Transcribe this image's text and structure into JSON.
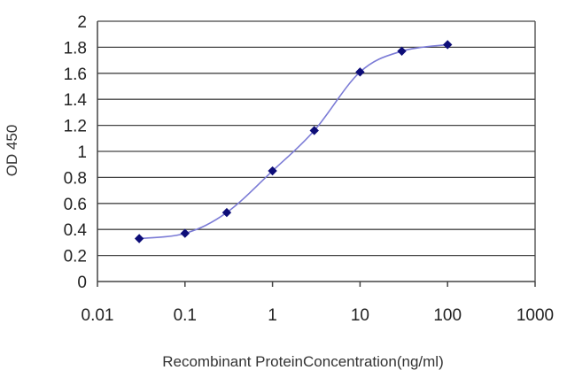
{
  "chart_data": {
    "type": "line",
    "title": "",
    "xlabel": "Recombinant ProteinConcentration(ng/ml)",
    "ylabel": "OD 450",
    "x_scale": "log",
    "xlim": [
      0.01,
      1000
    ],
    "ylim": [
      0,
      2
    ],
    "x_ticks": [
      "0.01",
      "0.1",
      "1",
      "10",
      "100",
      "1000"
    ],
    "y_ticks": [
      "0",
      "0.2",
      "0.4",
      "0.6",
      "0.8",
      "1",
      "1.2",
      "1.4",
      "1.6",
      "1.8",
      "2"
    ],
    "grid": true,
    "legend": "none",
    "series": [
      {
        "x": [
          0.03,
          0.1,
          0.3,
          1,
          3,
          10,
          30,
          100
        ],
        "y": [
          0.33,
          0.37,
          0.53,
          0.85,
          1.16,
          1.61,
          1.77,
          1.82
        ]
      }
    ],
    "colors": {
      "line": "#7b7bd6",
      "marker": "#0d0d78",
      "grid": "#444444",
      "axis": "#444444"
    }
  }
}
